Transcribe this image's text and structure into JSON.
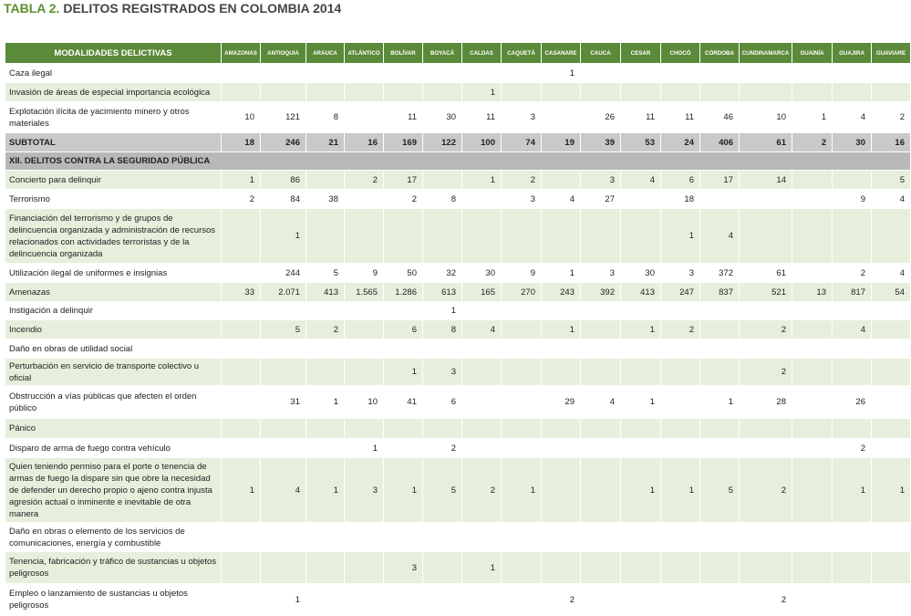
{
  "title": {
    "label": "TABLA 2.",
    "text": "DELITOS REGISTRADOS EN COLOMBIA 2014"
  },
  "table": {
    "columns": [
      "MODALIDADES DELICTIVAS",
      "AMAZONAS",
      "ANTIOQUIA",
      "ARAUCA",
      "ATLÁNTICO",
      "BOLÍVAR",
      "BOYACÁ",
      "CALDAS",
      "CAQUETÁ",
      "CASANARE",
      "CAUCA",
      "CESAR",
      "CHOCÓ",
      "CÓRDOBA",
      "CUNDINAMARCA",
      "GUAINÍA",
      "GUAJIRA",
      "GUAVIARE"
    ],
    "groups": [
      {
        "rows": [
          {
            "label": "Caza ilegal",
            "values": [
              null,
              null,
              null,
              null,
              null,
              null,
              null,
              null,
              1,
              null,
              null,
              null,
              null,
              null,
              null,
              null,
              null
            ]
          },
          {
            "label": "Invasión de áreas de especial importancia ecológica",
            "values": [
              null,
              null,
              null,
              null,
              null,
              null,
              1,
              null,
              null,
              null,
              null,
              null,
              null,
              null,
              null,
              null,
              null
            ]
          },
          {
            "label": "Explotación ilícita de yacimiento minero y otros materiales",
            "values": [
              10,
              121,
              8,
              null,
              11,
              30,
              11,
              3,
              null,
              26,
              11,
              11,
              46,
              10,
              1,
              4,
              2
            ]
          }
        ],
        "subtotal": {
          "label": "SUBTOTAL",
          "values": [
            18,
            246,
            21,
            16,
            169,
            122,
            100,
            74,
            19,
            39,
            53,
            24,
            406,
            61,
            2,
            30,
            16
          ]
        }
      },
      {
        "section": "XII. DELITOS CONTRA LA SEGURIDAD PÚBLICA",
        "rows": [
          {
            "label": "Concierto para delinquir",
            "values": [
              1,
              86,
              null,
              2,
              17,
              null,
              1,
              2,
              null,
              3,
              4,
              6,
              17,
              14,
              null,
              null,
              5
            ]
          },
          {
            "label": "Terrorismo",
            "values": [
              2,
              84,
              38,
              null,
              2,
              8,
              null,
              3,
              4,
              27,
              null,
              18,
              null,
              null,
              null,
              9,
              4
            ]
          },
          {
            "label": "Financiación del terrorismo y de grupos de delincuencia organizada y administración de recursos relacionados con actividades terroristas y de la delincuencia organizada",
            "values": [
              null,
              1,
              null,
              null,
              null,
              null,
              null,
              null,
              null,
              null,
              null,
              1,
              4,
              null,
              null,
              null,
              null
            ]
          },
          {
            "label": "Utilización ilegal de uniformes e insignias",
            "values": [
              null,
              244,
              5,
              9,
              50,
              32,
              30,
              9,
              1,
              3,
              30,
              3,
              372,
              61,
              null,
              2,
              4
            ]
          },
          {
            "label": "Amenazas",
            "values": [
              33,
              "2.071",
              413,
              "1.565",
              "1.286",
              613,
              165,
              270,
              243,
              392,
              413,
              247,
              837,
              521,
              13,
              817,
              54
            ]
          },
          {
            "label": "Instigación a delinquir",
            "values": [
              null,
              null,
              null,
              null,
              null,
              1,
              null,
              null,
              null,
              null,
              null,
              null,
              null,
              null,
              null,
              null,
              null
            ]
          },
          {
            "label": "Incendio",
            "values": [
              null,
              5,
              2,
              null,
              6,
              8,
              4,
              null,
              1,
              null,
              1,
              2,
              null,
              2,
              null,
              4,
              null
            ]
          },
          {
            "label": "Daño en obras de utilidad social",
            "values": [
              null,
              null,
              null,
              null,
              null,
              null,
              null,
              null,
              null,
              null,
              null,
              null,
              null,
              null,
              null,
              null,
              null
            ]
          },
          {
            "label": "Perturbación en servicio de transporte colectivo u oficial",
            "values": [
              null,
              null,
              null,
              null,
              1,
              3,
              null,
              null,
              null,
              null,
              null,
              null,
              null,
              2,
              null,
              null,
              null
            ]
          },
          {
            "label": "Obstrucción a vías públicas que afecten el orden público",
            "values": [
              null,
              31,
              1,
              10,
              41,
              6,
              null,
              null,
              29,
              4,
              1,
              null,
              1,
              28,
              null,
              26,
              null
            ]
          },
          {
            "label": "Pánico",
            "values": [
              null,
              null,
              null,
              null,
              null,
              null,
              null,
              null,
              null,
              null,
              null,
              null,
              null,
              null,
              null,
              null,
              null
            ]
          },
          {
            "label": "Disparo de arma de fuego contra vehículo",
            "values": [
              null,
              null,
              null,
              1,
              null,
              2,
              null,
              null,
              null,
              null,
              null,
              null,
              null,
              null,
              null,
              2,
              null
            ]
          },
          {
            "label": "Quien teniendo permiso para el porte o tenencia de armas de fuego la dispare sin que obre la necesidad de defender un derecho propio o ajeno contra injusta agresión actual o inminente e inevitable de otra manera",
            "values": [
              1,
              4,
              1,
              3,
              1,
              5,
              2,
              1,
              null,
              null,
              1,
              1,
              5,
              2,
              null,
              1,
              1
            ]
          },
          {
            "label": "Daño en obras o elemento de los servicios de comunicaciones, energía y combustible",
            "values": [
              null,
              null,
              null,
              null,
              null,
              null,
              null,
              null,
              null,
              null,
              null,
              null,
              null,
              null,
              null,
              null,
              null
            ]
          },
          {
            "label": "Tenencia, fabricación y tráfico de sustancias u objetos peligrosos",
            "values": [
              null,
              null,
              null,
              null,
              3,
              null,
              1,
              null,
              null,
              null,
              null,
              null,
              null,
              null,
              null,
              null,
              null
            ]
          },
          {
            "label": "Empleo o lanzamiento de sustancias u objetos peligrosos",
            "values": [
              null,
              1,
              null,
              null,
              null,
              null,
              null,
              null,
              2,
              null,
              null,
              null,
              null,
              2,
              null,
              null,
              null
            ]
          }
        ]
      }
    ]
  }
}
